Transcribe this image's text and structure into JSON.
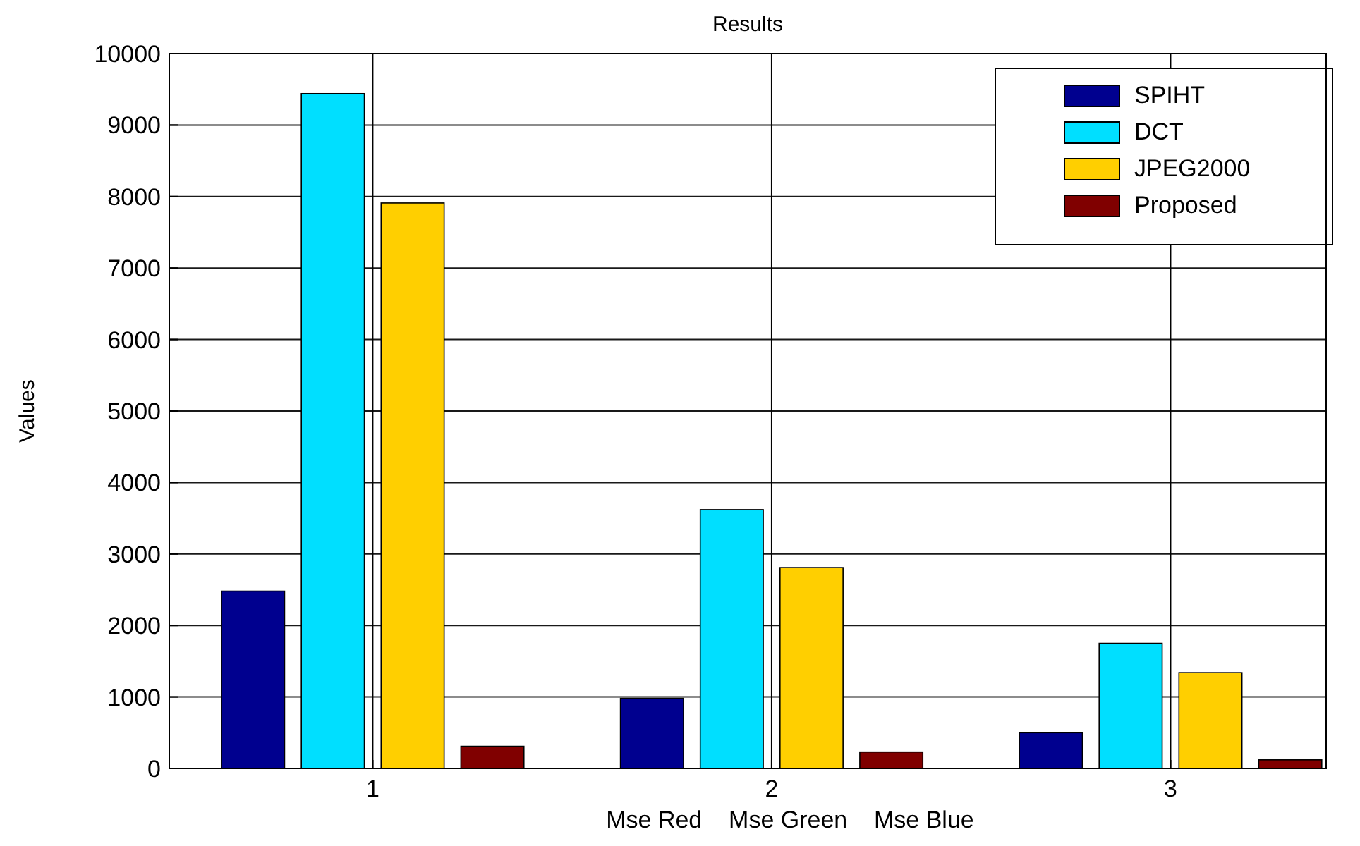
{
  "chart_data": {
    "type": "bar",
    "title": "Results",
    "xlabel": "Mse Red    Mse Green    Mse Blue",
    "ylabel": "Values",
    "categories": [
      "1",
      "2",
      "3"
    ],
    "series": [
      {
        "name": "SPIHT",
        "color": "#00008f",
        "values": [
          2480,
          980,
          500
        ]
      },
      {
        "name": "DCT",
        "color": "#00dfff",
        "values": [
          9440,
          3620,
          1750
        ]
      },
      {
        "name": "JPEG2000",
        "color": "#ffcf00",
        "values": [
          7910,
          2810,
          1340
        ]
      },
      {
        "name": "Proposed",
        "color": "#800000",
        "values": [
          310,
          230,
          120
        ]
      }
    ],
    "ylim": [
      0,
      10000
    ],
    "yticks": [
      0,
      1000,
      2000,
      3000,
      4000,
      5000,
      6000,
      7000,
      8000,
      9000,
      10000
    ],
    "grid": true,
    "legend": "top right"
  }
}
